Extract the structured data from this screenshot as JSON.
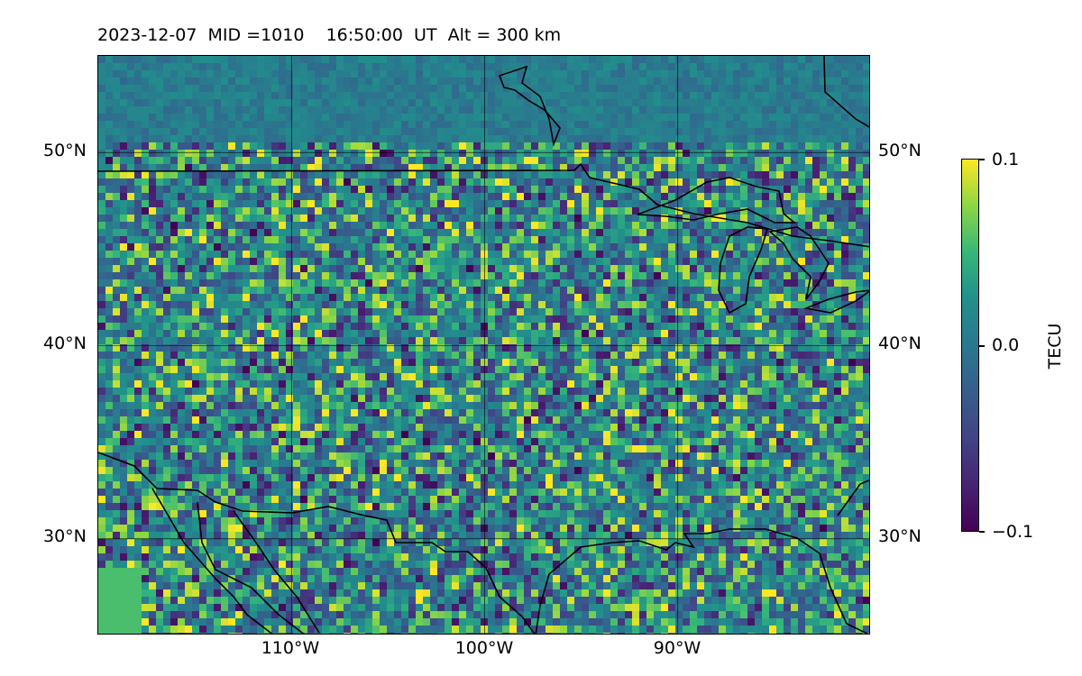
{
  "title": "2023-12-07  MID =1010    16:50:00  UT  Alt = 300 km",
  "map": {
    "type": "heatmap",
    "lon_range": [
      -120,
      -80
    ],
    "lat_range": [
      25,
      55
    ],
    "lat_ticks": [
      {
        "value": 50,
        "label": "50°N"
      },
      {
        "value": 40,
        "label": "40°N"
      },
      {
        "value": 30,
        "label": "30°N"
      }
    ],
    "lon_ticks": [
      {
        "value": -110,
        "label": "110°W"
      },
      {
        "value": -100,
        "label": "100°W"
      },
      {
        "value": -90,
        "label": "90°W"
      }
    ],
    "grid": true,
    "colormap": "viridis",
    "boundaries": "coastlines and national borders (black lines)"
  },
  "colorbar": {
    "label": "TECU",
    "min": -0.1,
    "max": 0.1,
    "ticks": [
      {
        "value": 0.1,
        "label": "0.1"
      },
      {
        "value": 0.0,
        "label": "0.0"
      },
      {
        "value": -0.1,
        "label": "−0.1"
      }
    ]
  }
}
